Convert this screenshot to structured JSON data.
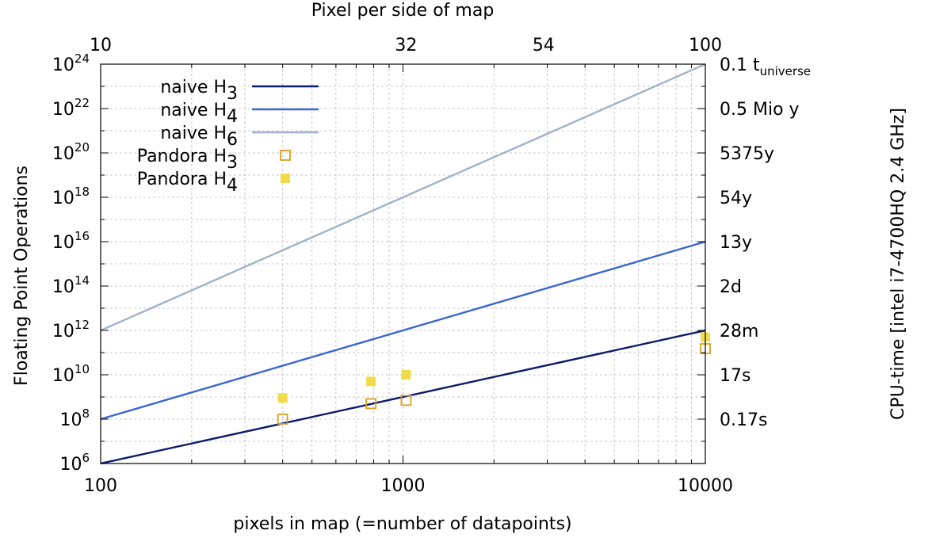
{
  "chart_data": {
    "type": "line",
    "title": "",
    "xlabel": "pixels in map (=number of datapoints)",
    "ylabel": "Floating Point Operations",
    "x2label": "Pixel per side of map",
    "y2label": "CPU-time [intel i7-4700HQ 2.4 GHz]",
    "xscale": "log",
    "yscale": "log",
    "xlim": [
      100,
      10000
    ],
    "ylim": [
      1000000.0,
      1e+24
    ],
    "grid": true,
    "legend_position": "top-left",
    "x_ticks": [
      {
        "value": 100,
        "label": "100"
      },
      {
        "value": 1000,
        "label": "1000"
      },
      {
        "value": 10000,
        "label": "10000"
      }
    ],
    "y_ticks": [
      {
        "value": 1000000.0,
        "base": "10",
        "exp": "6"
      },
      {
        "value": 100000000.0,
        "base": "10",
        "exp": "8"
      },
      {
        "value": 10000000000.0,
        "base": "10",
        "exp": "10"
      },
      {
        "value": 1000000000000.0,
        "base": "10",
        "exp": "12"
      },
      {
        "value": 100000000000000.0,
        "base": "10",
        "exp": "14"
      },
      {
        "value": 1e+16,
        "base": "10",
        "exp": "16"
      },
      {
        "value": 1e+18,
        "base": "10",
        "exp": "18"
      },
      {
        "value": 1e+20,
        "base": "10",
        "exp": "20"
      },
      {
        "value": 1e+22,
        "base": "10",
        "exp": "22"
      },
      {
        "value": 1e+24,
        "base": "10",
        "exp": "24"
      }
    ],
    "x2_ticks": [
      {
        "value": 100,
        "label": "10"
      },
      {
        "value": 1024,
        "label": "32"
      },
      {
        "value": 2916,
        "label": "54"
      },
      {
        "value": 10000,
        "label": "100"
      }
    ],
    "y2_ticks": [
      {
        "value": 1e+24,
        "label": "0.1 t",
        "sub": "universe"
      },
      {
        "value": 1e+22,
        "label": "0.5 Mio y",
        "sub": ""
      },
      {
        "value": 1e+20,
        "label": "5375y",
        "sub": ""
      },
      {
        "value": 1e+18,
        "label": "54y",
        "sub": ""
      },
      {
        "value": 1e+16,
        "label": "13y",
        "sub": ""
      },
      {
        "value": 100000000000000.0,
        "label": "2d",
        "sub": ""
      },
      {
        "value": 1000000000000.0,
        "label": "28m",
        "sub": ""
      },
      {
        "value": 10000000000.0,
        "label": "17s",
        "sub": ""
      },
      {
        "value": 100000000.0,
        "label": "0.17s",
        "sub": ""
      }
    ],
    "series": [
      {
        "name": "naive H",
        "sub": "3",
        "kind": "line",
        "color": "#0b1a6b",
        "x": [
          100,
          10000
        ],
        "y": [
          1000000.0,
          1000000000000.0
        ]
      },
      {
        "name": "naive H",
        "sub": "4",
        "kind": "line",
        "color": "#3a66d1",
        "x": [
          100,
          10000
        ],
        "y": [
          100000000.0,
          1e+16
        ]
      },
      {
        "name": "naive H",
        "sub": "6",
        "kind": "line",
        "color": "#9eb3c9",
        "x": [
          100,
          10000
        ],
        "y": [
          1000000000000.0,
          1e+24
        ]
      },
      {
        "name": "Pandora H",
        "sub": "3",
        "kind": "open-square",
        "color": "#d9a020",
        "x": [
          400,
          784,
          1024,
          10000
        ],
        "y": [
          100000000.0,
          500000000.0,
          700000000.0,
          150000000000.0
        ]
      },
      {
        "name": "Pandora H",
        "sub": "4",
        "kind": "filled-square",
        "color": "#f0dc4a",
        "x": [
          400,
          784,
          1024,
          10000
        ],
        "y": [
          900000000.0,
          5000000000.0,
          10000000000.0,
          500000000000.0
        ]
      }
    ]
  }
}
